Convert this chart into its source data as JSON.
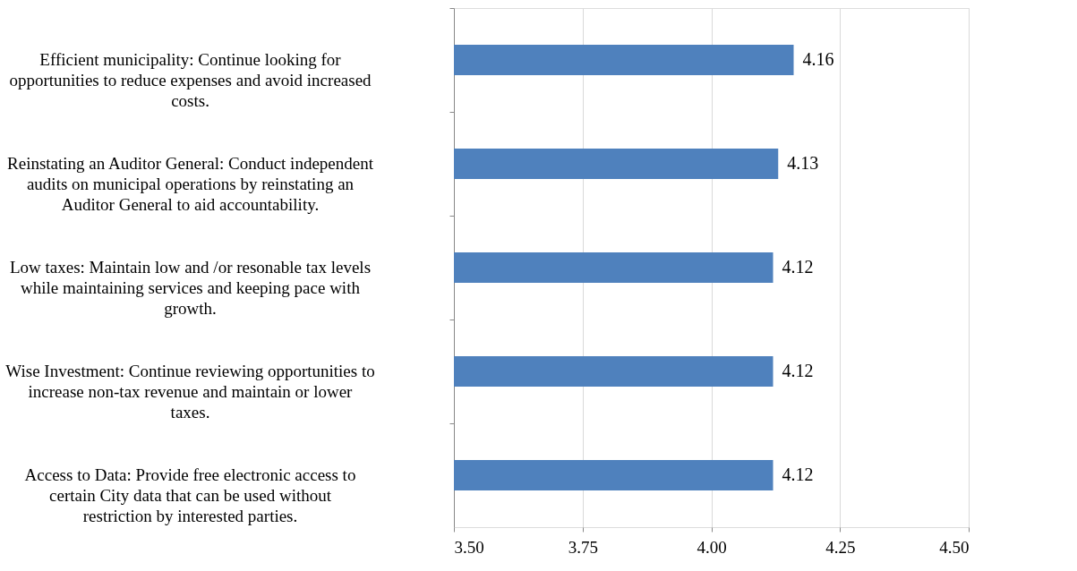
{
  "chart_data": {
    "type": "bar",
    "orientation": "horizontal",
    "categories": [
      "Efficient municipality: Continue looking for opportunities to reduce expenses and avoid increased costs.",
      "Reinstating an Auditor General: Conduct independent audits on municipal operations by reinstating an Auditor General to aid accountability.",
      "Low taxes: Maintain low and /or resonable tax levels while maintaining services and keeping pace with growth.",
      "Wise Investment: Continue reviewing opportunities to increase non-tax revenue and maintain or lower taxes.",
      "Access to Data: Provide free electronic access to certain City data that can be used without restriction by interested parties."
    ],
    "values": [
      4.16,
      4.13,
      4.12,
      4.12,
      4.12
    ],
    "color": "#4f81bd",
    "xlim": [
      3.5,
      4.5
    ],
    "xticks": [
      {
        "value": 3.5,
        "label": "3.50"
      },
      {
        "value": 3.75,
        "label": "3.75"
      },
      {
        "value": 4.0,
        "label": "4.00"
      },
      {
        "value": 4.25,
        "label": "4.25"
      },
      {
        "value": 4.5,
        "label": "4.50"
      }
    ],
    "grid": "x",
    "data_labels": true
  }
}
